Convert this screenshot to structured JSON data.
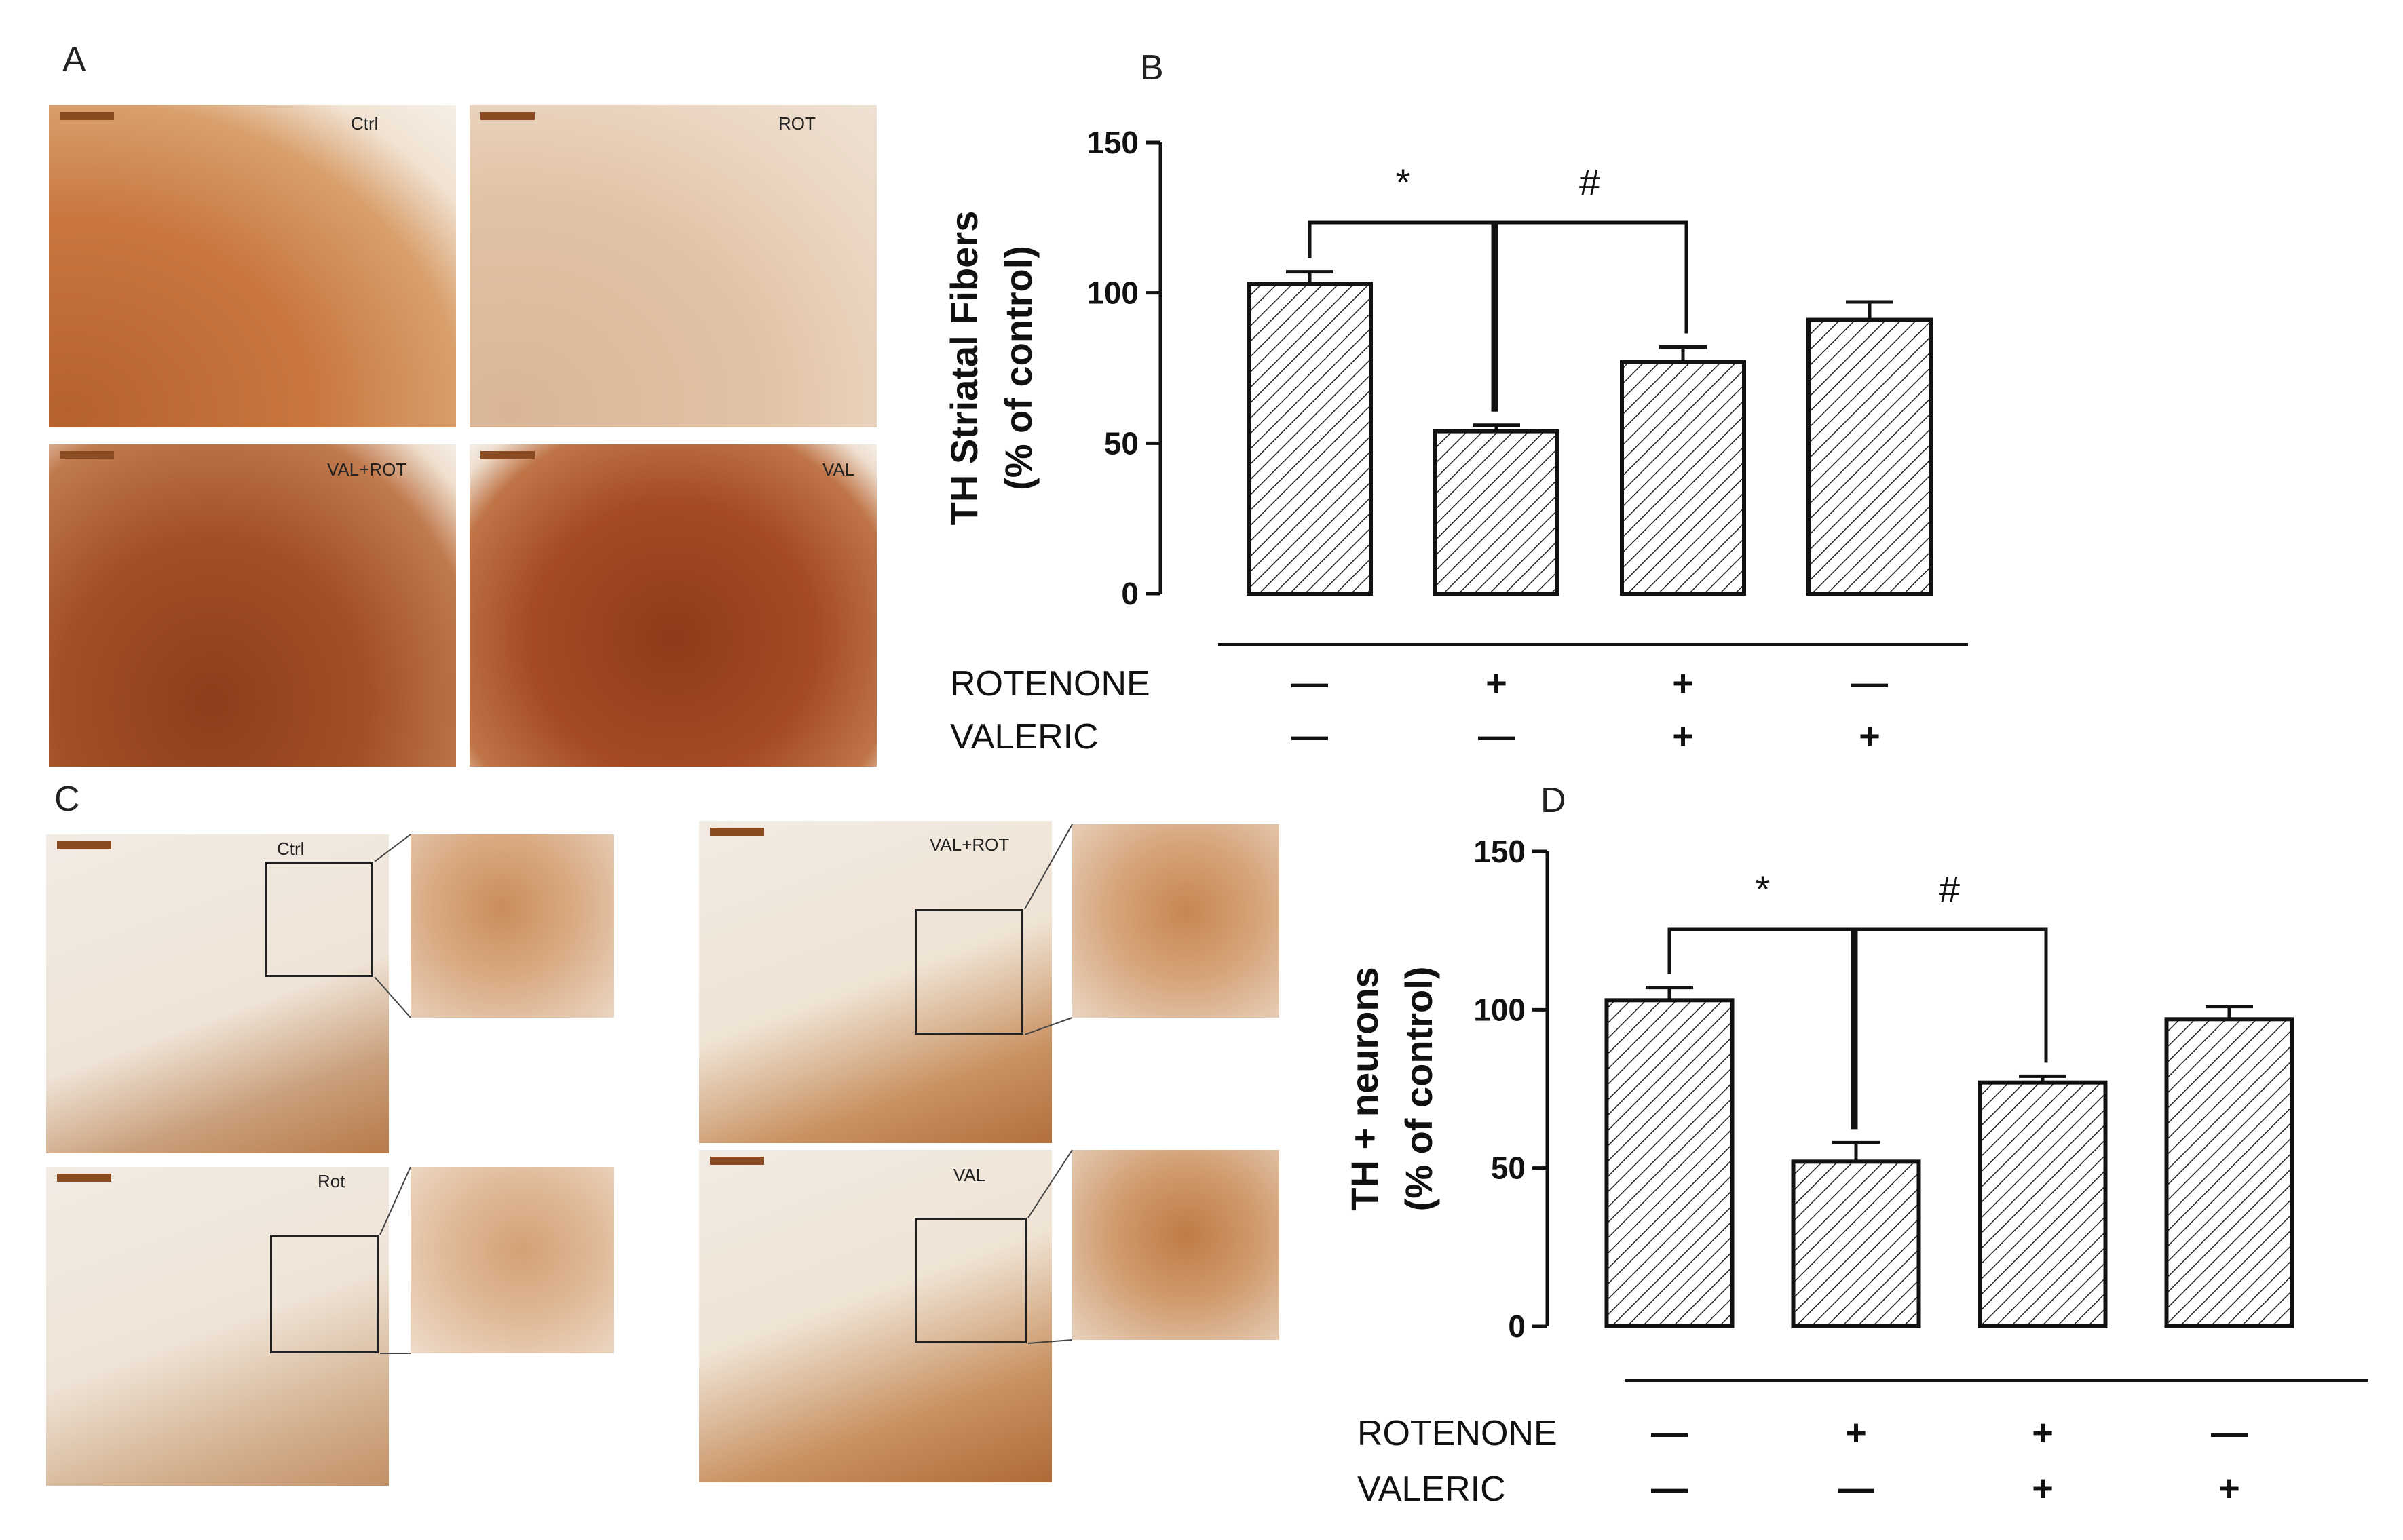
{
  "panels": {
    "A": {
      "letter": "A",
      "images": [
        {
          "label": "Ctrl"
        },
        {
          "label": "ROT"
        },
        {
          "label": "VAL+ROT"
        },
        {
          "label": "VAL"
        }
      ]
    },
    "B": {
      "letter": "B"
    },
    "C": {
      "letter": "C",
      "images": [
        {
          "label": "Ctrl"
        },
        {
          "label": "Rot"
        },
        {
          "label": "VAL+ROT"
        },
        {
          "label": "VAL"
        }
      ]
    },
    "D": {
      "letter": "D"
    }
  },
  "colors": {
    "stain_dark": "#a0522d",
    "stain_light": "#e9cdb0",
    "tissue_bg": "#f3ece4",
    "bar_stroke": "#111111"
  },
  "chart_data": [
    {
      "type": "bar",
      "panel": "B",
      "ylabel": "TH Striatal Fibers",
      "ylabel2": "(% of control)",
      "ylim": [
        0,
        150
      ],
      "yticks": [
        "0",
        "50",
        "100",
        "150"
      ],
      "values": [
        103,
        54,
        77,
        91
      ],
      "errors": [
        4,
        2,
        5,
        6
      ],
      "conditions": [
        {
          "name": "ROTENONE",
          "marks": [
            "—",
            "+",
            "+",
            "—"
          ]
        },
        {
          "name": "VALERIC",
          "marks": [
            "—",
            "—",
            "+",
            "+"
          ]
        }
      ],
      "significance": [
        {
          "symbol": "*",
          "from": 0,
          "to": 1
        },
        {
          "symbol": "#",
          "from": 1,
          "to": 2
        }
      ]
    },
    {
      "type": "bar",
      "panel": "D",
      "ylabel": "TH + neurons",
      "ylabel2": "(% of control)",
      "ylim": [
        0,
        150
      ],
      "yticks": [
        "0",
        "50",
        "100",
        "150"
      ],
      "values": [
        103,
        52,
        77,
        97
      ],
      "errors": [
        4,
        6,
        2,
        4
      ],
      "conditions": [
        {
          "name": "ROTENONE",
          "marks": [
            "—",
            "+",
            "+",
            "—"
          ]
        },
        {
          "name": "VALERIC",
          "marks": [
            "—",
            "—",
            "+",
            "+"
          ]
        }
      ],
      "significance": [
        {
          "symbol": "*",
          "from": 0,
          "to": 1
        },
        {
          "symbol": "#",
          "from": 1,
          "to": 2
        }
      ]
    }
  ]
}
